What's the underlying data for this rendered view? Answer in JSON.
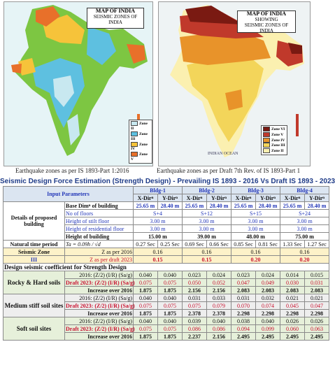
{
  "maps": {
    "left": {
      "title": "MAP OF INDIA",
      "subtitle": "SEISMIC ZONES OF INDIA",
      "caption": "Earthquake zones as per IS 1893-Part 1:2016",
      "legend": [
        "Zone II",
        "Zone III",
        "Zone IV",
        "Zone V"
      ],
      "colors": {
        "zone2": "#c8e8f0",
        "zone3": "#5ec0e0",
        "zone4": "#f6c33a",
        "zone5": "#e8702a",
        "land": "#7dc642"
      }
    },
    "right": {
      "title": "MAP OF INDIA",
      "subtitle_top": "SHOWING",
      "subtitle": "SEISMIC ZONES OF INDIA",
      "caption": "Earthquake zones as per Draft 7th Rev. of IS 1893-Part 1",
      "legend": [
        "Zone VI",
        "Zone V",
        "Zone IV",
        "Zone III",
        "Zone II"
      ],
      "colors": {
        "zone6": "#7a1a12",
        "zone5": "#c0392b",
        "zone4": "#e8932a",
        "zone3": "#f3d55a",
        "zone2": "#fbf0b0"
      },
      "sea_label": "INDIAN OCEAN"
    }
  },
  "table": {
    "title": "Seismic Design Force Estimation (Strength Design) - Prevailing IS 1893 - 2016 Vs Draft IS 1893 - 2023",
    "input_parameters": "Input Parameters",
    "buildings": [
      "Bldg-1",
      "Bldg-2",
      "Bldg-3",
      "Bldg-4"
    ],
    "x_dir": "X-Dirⁿ",
    "y_dir": "Y-Dirⁿ",
    "details_label": "Details of proposed building",
    "base_dim_label": "Base Dimⁿ of building",
    "base_dims": [
      [
        "25.65 m",
        "28.40 m"
      ],
      [
        "25.65 m",
        "28.40 m"
      ],
      [
        "25.65 m",
        "28.40 m"
      ],
      [
        "25.65 m",
        "28.40 m"
      ]
    ],
    "floors_label": "No of floors",
    "floors": [
      "S+4",
      "S+12",
      "S+15",
      "S+24"
    ],
    "stilt_label": "Height of stilt floor",
    "stilt": [
      "3.00 m",
      "3.00 m",
      "3.00 m",
      "3.00 m"
    ],
    "residential_label": "Height of residential floor",
    "residential": [
      "3.00 m",
      "3.00 m",
      "3.00 m",
      "3.00 m"
    ],
    "height_label": "Height of building",
    "heights": [
      "15.00 m",
      "39.00 m",
      "48.00 m",
      "75.00 m"
    ],
    "period_label": "Natural time period",
    "period_formula": "Ta = 0.09h / √d",
    "periods": [
      [
        "0.27 Sec",
        "0.25 Sec"
      ],
      [
        "0.69 Sec",
        "0.66 Sec"
      ],
      [
        "0.85 Sec",
        "0.81 Sec"
      ],
      [
        "1.33 Sec",
        "1.27 Sec"
      ]
    ],
    "seismic_zone_label": "Seismic Zone",
    "seismic_zone_value": "III",
    "z_2016_label": "Z as per 2016",
    "z_2016": [
      "0.16",
      "0.16",
      "0.16",
      "0.16"
    ],
    "z_2023_label": "Z as per draft 2023",
    "z_2023": [
      "0.15",
      "0.15",
      "0.20",
      "0.20"
    ],
    "coef_heading": "Design seismic coefficient for Strength Design",
    "row_2016_label": "2016: (Z/2) (I/R) (Sa/g)",
    "row_draft_label": "Draft 2023: (Z/2) (I/R) (Sa/g)",
    "row_increase_label": "Increase over 2016",
    "soils": [
      {
        "name": "Rocky & Hard soils",
        "v2016": [
          "0.040",
          "0.040",
          "0.023",
          "0.024",
          "0.023",
          "0.024",
          "0.014",
          "0.015"
        ],
        "draft": [
          "0.075",
          "0.075",
          "0.050",
          "0.052",
          "0.047",
          "0.049",
          "0.030",
          "0.031"
        ],
        "increase": [
          "1.875",
          "1.875",
          "2.156",
          "2.156",
          "2.083",
          "2.083",
          "2.083",
          "2.083"
        ]
      },
      {
        "name": "Medium stiff soil sites",
        "v2016": [
          "0.040",
          "0.040",
          "0.031",
          "0.033",
          "0.031",
          "0.032",
          "0.021",
          "0.021"
        ],
        "draft": [
          "0.075",
          "0.075",
          "0.075",
          "0.079",
          "0.070",
          "0.074",
          "0.045",
          "0.047"
        ],
        "increase": [
          "1.875",
          "1.875",
          "2.378",
          "2.378",
          "2.298",
          "2.298",
          "2.298",
          "2.298"
        ]
      },
      {
        "name": "Soft soil sites",
        "v2016": [
          "0.040",
          "0.040",
          "0.039",
          "0.040",
          "0.038",
          "0.040",
          "0.026",
          "0.026"
        ],
        "draft": [
          "0.075",
          "0.075",
          "0.086",
          "0.086",
          "0.094",
          "0.099",
          "0.060",
          "0.063"
        ],
        "increase": [
          "1.875",
          "1.875",
          "2.237",
          "2.156",
          "2.495",
          "2.495",
          "2.495",
          "2.495"
        ]
      }
    ]
  }
}
